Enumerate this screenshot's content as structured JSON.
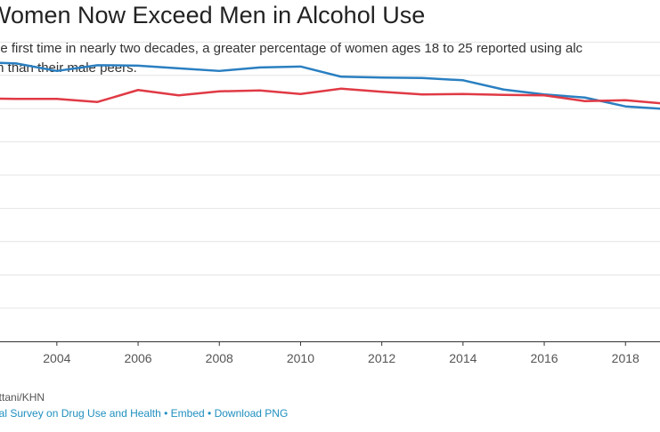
{
  "header": {
    "title": "Women Now Exceed Men in Alcohol Use",
    "subtitle_line1": "he first time in nearly two decades, a greater percentage of women ages 18 to 25 reported using alc",
    "subtitle_line2": "th than their male peers."
  },
  "footer": {
    "credit": "attani/KHN",
    "source": "nal Survey on Drug Use and Health",
    "separator": "•",
    "embed": "Embed",
    "download": "Download PNG"
  },
  "colors": {
    "men": "#2a7fc1",
    "women": "#e03a45",
    "grid": "#e4e4e4",
    "axis": "#333333",
    "tick_label": "#555555"
  },
  "chart_data": {
    "type": "line",
    "x": [
      2002,
      2003,
      2004,
      2005,
      2006,
      2007,
      2008,
      2009,
      2010,
      2011,
      2012,
      2013,
      2014,
      2015,
      2016,
      2017,
      2018,
      2019
    ],
    "xlim": [
      2002.6,
      2018.85
    ],
    "ylim": [
      0,
      75
    ],
    "grid": true,
    "legend": "none",
    "xticks": [
      "2004",
      "2006",
      "2008",
      "2010",
      "2012",
      "2014",
      "2016",
      "2018"
    ],
    "series": [
      {
        "key": "men",
        "values": [
          63.0,
          62.7,
          61.0,
          62.3,
          62.2,
          61.6,
          61.0,
          61.8,
          62.0,
          59.7,
          59.5,
          59.4,
          58.9,
          56.8,
          55.7,
          55.0,
          53.0,
          52.4
        ]
      },
      {
        "key": "women",
        "values": [
          54.8,
          54.7,
          54.7,
          54.0,
          56.7,
          55.5,
          56.4,
          56.6,
          55.8,
          57.0,
          56.3,
          55.7,
          55.8,
          55.6,
          55.5,
          54.2,
          54.4,
          53.6
        ]
      }
    ]
  }
}
